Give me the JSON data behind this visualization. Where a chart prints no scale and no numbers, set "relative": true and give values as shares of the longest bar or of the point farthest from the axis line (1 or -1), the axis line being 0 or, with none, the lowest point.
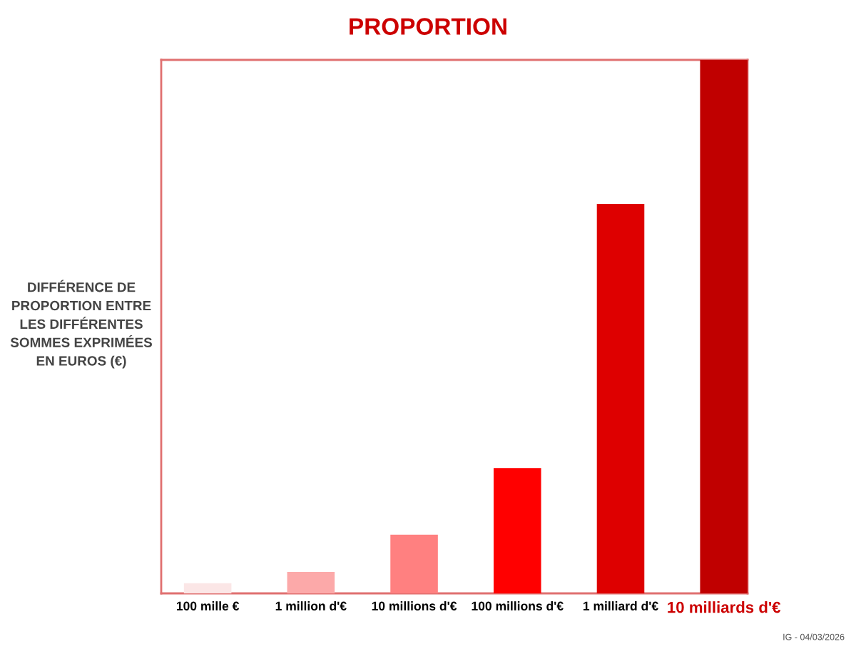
{
  "chart_data": {
    "type": "bar",
    "title": "PROPORTION",
    "ylabel": "DIFFÉRENCE DE\nPROPORTION ENTRE\nLES DIFFÉRENTES\nSOMMES EXPRIMÉES\nEN EUROS (€)",
    "categories": [
      "100 mille €",
      "1 million d'€",
      "10 millions d'€",
      "100 millions d'€",
      "1 milliard d'€",
      "10 milliards d'€"
    ],
    "values": [
      0.019,
      0.04,
      0.11,
      0.235,
      0.73,
      1
    ],
    "colors": [
      "#fbe6e6",
      "#fca9a9",
      "#ff8080",
      "#ff0000",
      "#de0000",
      "#c00000"
    ],
    "relative": true,
    "annotations": [
      "IG - 04/03/2026"
    ]
  }
}
